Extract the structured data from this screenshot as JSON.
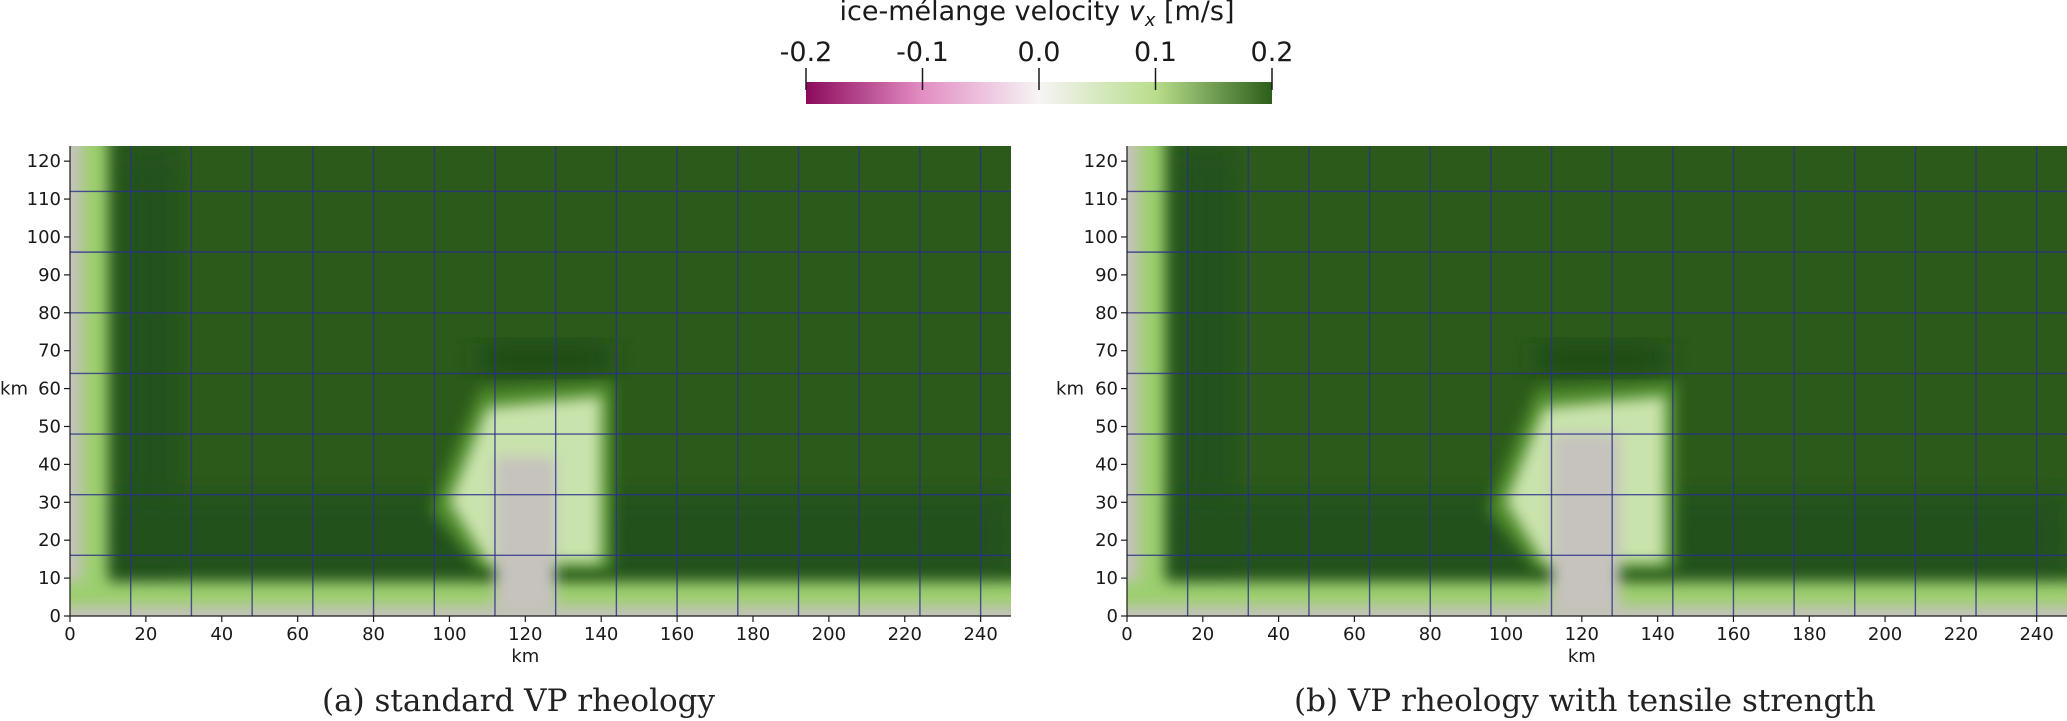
{
  "colorbar": {
    "title_prefix": "ice-mélange velocity ",
    "title_var": "v",
    "title_sub": "x",
    "title_unit": " [m/s]",
    "ticks": [
      "-0.2",
      "-0.1",
      "0.0",
      "0.1",
      "0.2"
    ],
    "range": [
      -0.2,
      0.2
    ],
    "colors": {
      "min": "#8c0a5c",
      "neg_mid": "#e38ec4",
      "zero": "#f6f4f5",
      "pos_mid": "#b8de8c",
      "max": "#2c5e1a"
    }
  },
  "chart_data": [
    {
      "type": "heatmap",
      "caption": "(a) standard VP rheology",
      "xlabel": "km",
      "ylabel": "km",
      "xlim": [
        0,
        248
      ],
      "ylim": [
        0,
        124
      ],
      "xticks": [
        0,
        20,
        40,
        60,
        80,
        100,
        120,
        140,
        160,
        180,
        200,
        220,
        240
      ],
      "yticks": [
        0,
        10,
        20,
        30,
        40,
        50,
        60,
        70,
        80,
        90,
        100,
        110,
        120
      ],
      "mesh_x": [
        16,
        32,
        48,
        64,
        80,
        96,
        112,
        128,
        144,
        160,
        176,
        192,
        208,
        224,
        240
      ],
      "mesh_y": [
        16,
        32,
        48,
        64,
        80,
        96,
        112
      ],
      "value_field": {
        "background": 0.2,
        "zero_regions": [
          "x < 3",
          "y < 2",
          "x 112-128, y < 45"
        ],
        "reduced_regions": [
          "x 95-143, y 20-62 (about 0.05-0.1)",
          "x 5-20, y 5-124"
        ]
      }
    },
    {
      "type": "heatmap",
      "caption": "(b) VP rheology with tensile strength",
      "xlabel": "km",
      "ylabel": "km",
      "xlim": [
        0,
        248
      ],
      "ylim": [
        0,
        124
      ],
      "xticks": [
        0,
        20,
        40,
        60,
        80,
        100,
        120,
        140,
        160,
        180,
        200,
        220,
        240
      ],
      "yticks": [
        0,
        10,
        20,
        30,
        40,
        50,
        60,
        70,
        80,
        90,
        100,
        110,
        120
      ],
      "mesh_x": [
        16,
        32,
        48,
        64,
        80,
        96,
        112,
        128,
        144,
        160,
        176,
        192,
        208,
        224,
        240
      ],
      "mesh_y": [
        16,
        32,
        48,
        64,
        80,
        96,
        112
      ],
      "value_field": {
        "background": 0.2,
        "zero_regions": [
          "x < 3",
          "y < 2",
          "x 112-130, y < 48"
        ],
        "reduced_regions": [
          "x 95-145, y 20-62 (about 0.05-0.1)",
          "x 5-20, y 5-124"
        ]
      }
    }
  ]
}
